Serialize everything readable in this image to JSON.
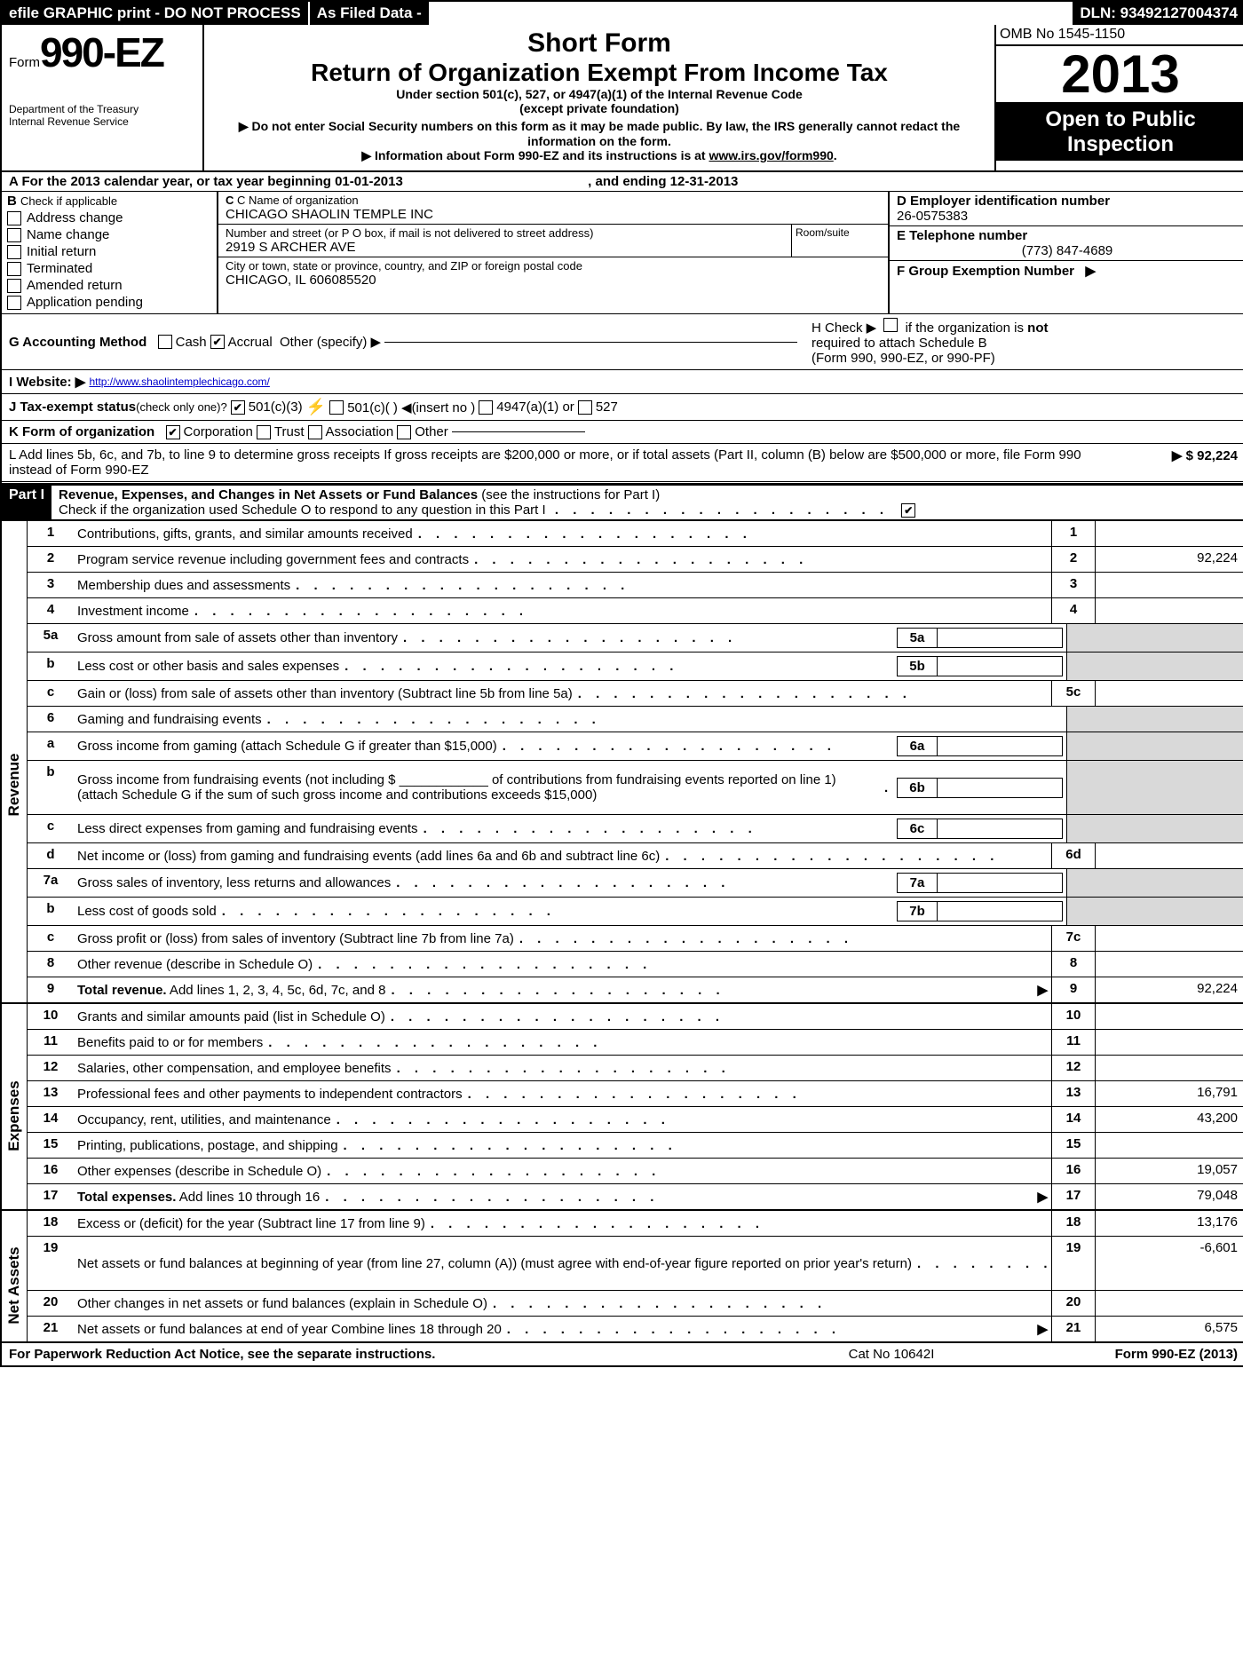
{
  "topbar": {
    "seg1": "efile GRAPHIC print - DO NOT PROCESS",
    "seg2": "As Filed Data -",
    "dln": "DLN: 93492127004374"
  },
  "header": {
    "form_prefix": "Form",
    "form_number": "990-EZ",
    "dept1": "Department of the Treasury",
    "dept2": "Internal Revenue Service",
    "shortform": "Short Form",
    "maintitle": "Return of Organization Exempt From Income Tax",
    "sub1": "Under section 501(c), 527, or 4947(a)(1) of the Internal Revenue Code",
    "sub2": "(except private foundation)",
    "sub3": "▶ Do not enter Social Security numbers on this form as it may be made public. By law, the IRS generally cannot redact the information on the form.",
    "sub4": "▶ Information about Form 990-EZ and its instructions is at ",
    "sub4_link": "www.irs.gov/form990",
    "omb": "OMB No 1545-1150",
    "year": "2013",
    "openpub1": "Open to Public",
    "openpub2": "Inspection"
  },
  "row_a": {
    "label": "A For the 2013 calendar year, or tax year beginning 01-01-2013",
    "ending": ", and ending 12-31-2013"
  },
  "b_checks": {
    "title": "B",
    "sub": "Check if applicable",
    "c1": "Address change",
    "c2": "Name change",
    "c3": "Initial return",
    "c4": "Terminated",
    "c5": "Amended return",
    "c6": "Application pending"
  },
  "c_block": {
    "name_lbl": "C Name of organization",
    "name_val": "CHICAGO SHAOLIN TEMPLE INC",
    "street_lbl": "Number and street (or P O box, if mail is not delivered to street address)",
    "room_lbl": "Room/suite",
    "street_val": "2919 S ARCHER AVE",
    "city_lbl": "City or town, state or province, country, and ZIP or foreign postal code",
    "city_val": "CHICAGO, IL 606085520"
  },
  "d_block": {
    "ein_lbl": "D Employer identification number",
    "ein_val": "26-0575383",
    "tel_lbl": "E Telephone number",
    "tel_val": "(773) 847-4689",
    "grp_lbl": "F Group Exemption Number",
    "grp_arrow": "▶"
  },
  "row_g": {
    "label": "G Accounting Method",
    "cash": "Cash",
    "accrual": "Accrual",
    "other": "Other (specify) ▶"
  },
  "row_h": {
    "text1": "H  Check ▶",
    "text2": "if the organization is",
    "text3": "not",
    "text4": "required to attach Schedule B",
    "text5": "(Form 990, 990-EZ, or 990-PF)"
  },
  "row_i": {
    "label": "I Website: ▶",
    "url": "http://www.shaolintemplechicago.com/"
  },
  "row_j": {
    "label": "J Tax-exempt status",
    "paren": "(check only one)?",
    "c1": "501(c)(3)",
    "c2": "501(c)(  )  ◀(insert no )",
    "c3": "4947(a)(1) or",
    "c4": "527"
  },
  "row_k": {
    "label": "K Form of organization",
    "c1": "Corporation",
    "c2": "Trust",
    "c3": "Association",
    "c4": "Other"
  },
  "row_l": {
    "text": "L Add lines 5b, 6c, and 7b, to line 9 to determine gross receipts  If gross receipts are $200,000 or more, or if total assets (Part II, column (B) below are $500,000 or more, file Form 990 instead of Form 990-EZ",
    "amt": "▶ $ 92,224"
  },
  "part1": {
    "label": "Part I",
    "title": "Revenue, Expenses, and Changes in Net Assets or Fund Balances",
    "instr": "(see the instructions for Part I)",
    "check": "Check if the organization used Schedule O to respond to any question in this Part I"
  },
  "lines": [
    {
      "n": "1",
      "d": "Contributions, gifts, grants, and similar amounts received",
      "en": "1",
      "ev": ""
    },
    {
      "n": "2",
      "d": "Program service revenue including government fees and contracts",
      "en": "2",
      "ev": "92,224"
    },
    {
      "n": "3",
      "d": "Membership dues and assessments",
      "en": "3",
      "ev": ""
    },
    {
      "n": "4",
      "d": "Investment income",
      "en": "4",
      "ev": ""
    },
    {
      "n": "5a",
      "d": "Gross amount from sale of assets other than inventory",
      "sn": "5a",
      "shaded": true
    },
    {
      "n": "b",
      "d": "Less cost or other basis and sales expenses",
      "sn": "5b",
      "shaded": true
    },
    {
      "n": "c",
      "d": "Gain or (loss) from sale of assets other than inventory (Subtract line 5b from line 5a)",
      "en": "5c",
      "ev": ""
    },
    {
      "n": "6",
      "d": "Gaming and fundraising events",
      "shaded": true,
      "noend": true
    },
    {
      "n": "a",
      "d": "Gross income from gaming (attach Schedule G if greater than $15,000)",
      "sn": "6a",
      "shaded": true
    },
    {
      "n": "b",
      "d": "Gross income from fundraising events (not including $ ____________ of contributions from fundraising events reported on line 1) (attach Schedule G if the sum of such gross income and contributions exceeds $15,000)",
      "sn": "6b",
      "shaded": true,
      "tall": true
    },
    {
      "n": "c",
      "d": "Less  direct expenses from gaming and fundraising events",
      "sn": "6c",
      "shaded": true
    },
    {
      "n": "d",
      "d": "Net income or (loss) from gaming and fundraising events (add lines 6a and 6b and subtract line 6c)",
      "en": "6d",
      "ev": ""
    },
    {
      "n": "7a",
      "d": "Gross sales of inventory, less returns and allowances",
      "sn": "7a",
      "shaded": true
    },
    {
      "n": "b",
      "d": "Less  cost of goods sold",
      "sn": "7b",
      "shaded": true
    },
    {
      "n": "c",
      "d": "Gross profit or (loss) from sales of inventory (Subtract line 7b from line 7a)",
      "en": "7c",
      "ev": ""
    },
    {
      "n": "8",
      "d": "Other revenue (describe in Schedule O)",
      "en": "8",
      "ev": ""
    },
    {
      "n": "9",
      "d": "Total revenue. Add lines 1, 2, 3, 4, 5c, 6d, 7c, and 8",
      "en": "9",
      "ev": "92,224",
      "arrow": true,
      "bold": true
    }
  ],
  "exp_lines": [
    {
      "n": "10",
      "d": "Grants and similar amounts paid (list in Schedule O)",
      "en": "10",
      "ev": ""
    },
    {
      "n": "11",
      "d": "Benefits paid to or for members",
      "en": "11",
      "ev": ""
    },
    {
      "n": "12",
      "d": "Salaries, other compensation, and employee benefits",
      "en": "12",
      "ev": ""
    },
    {
      "n": "13",
      "d": "Professional fees and other payments to independent contractors",
      "en": "13",
      "ev": "16,791"
    },
    {
      "n": "14",
      "d": "Occupancy, rent, utilities, and maintenance",
      "en": "14",
      "ev": "43,200"
    },
    {
      "n": "15",
      "d": "Printing, publications, postage, and shipping",
      "en": "15",
      "ev": ""
    },
    {
      "n": "16",
      "d": "Other expenses (describe in Schedule O)",
      "en": "16",
      "ev": "19,057"
    },
    {
      "n": "17",
      "d": "Total expenses. Add lines 10 through 16",
      "en": "17",
      "ev": "79,048",
      "arrow": true,
      "bold": true
    }
  ],
  "na_lines": [
    {
      "n": "18",
      "d": "Excess or (deficit) for the year (Subtract line 17 from line 9)",
      "en": "18",
      "ev": "13,176"
    },
    {
      "n": "19",
      "d": "Net assets or fund balances at beginning of year (from line 27, column (A)) (must agree with end-of-year figure reported on prior year's return)",
      "en": "19",
      "ev": "-6,601",
      "tall": true
    },
    {
      "n": "20",
      "d": "Other changes in net assets or fund balances (explain in Schedule O)",
      "en": "20",
      "ev": ""
    },
    {
      "n": "21",
      "d": "Net assets or fund balances at end of year  Combine lines 18 through 20",
      "en": "21",
      "ev": "6,575",
      "arrow": true
    }
  ],
  "footer": {
    "left": "For Paperwork Reduction Act Notice, see the separate instructions.",
    "mid": "Cat No 10642I",
    "right": "Form 990-EZ (2013)"
  },
  "side_labels": {
    "revenue": "Revenue",
    "expenses": "Expenses",
    "netassets": "Net Assets"
  }
}
